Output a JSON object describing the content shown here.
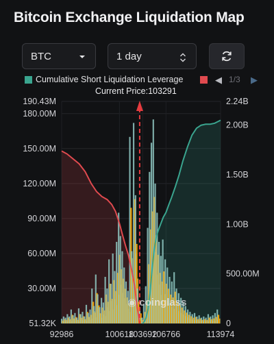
{
  "title": "Bitcoin Exchange Liquidation Map",
  "controls": {
    "coin": "BTC",
    "range": "1 day"
  },
  "icons": {
    "coin_dropdown": "chevron-down-icon",
    "range_stepper": "up-down-stepper-icon",
    "refresh": "refresh-icon",
    "prev": "triangle-left-icon",
    "next": "triangle-right-icon"
  },
  "colors": {
    "short_cumulative": "#3aa58f",
    "long_cumulative": "#e04a4f",
    "current_price_line": "#e53b3f",
    "bar_high": "#f5a300",
    "bar_mid": "#d8b238",
    "bar_teal": "#8fc8c2"
  },
  "legend": {
    "short_label": "Cumulative Short Liquidation Leverage",
    "page": "1/3"
  },
  "watermark": "coinglass",
  "chart_data": {
    "type": "bar",
    "current_price_label": "Current Price:103291",
    "current_price": 103291,
    "x_range": [
      92986,
      113974
    ],
    "x_ticks": [
      "92986",
      "100618",
      "103692",
      "106766",
      "113974"
    ],
    "x_tick_values": [
      92986,
      100618,
      103692,
      106766,
      113974
    ],
    "y_left_ticks": [
      "190.43M",
      "180.00M",
      "150.00M",
      "120.00M",
      "90.00M",
      "60.00M",
      "30.00M",
      "51.32K"
    ],
    "y_left_tick_values": [
      190430000,
      180000000,
      150000000,
      120000000,
      90000000,
      60000000,
      30000000,
      51320
    ],
    "y_left_range": [
      51320,
      190430000
    ],
    "y_right_ticks": [
      "2.24B",
      "2.00B",
      "1.50B",
      "1.00B",
      "500.00M",
      "0"
    ],
    "y_right_tick_values": [
      2240000000,
      2000000000,
      1500000000,
      1000000000,
      500000000,
      0
    ],
    "y_right_range": [
      0,
      2240000000
    ],
    "grid": true,
    "series": [
      {
        "name": "Cumulative Short Liquidation Leverage",
        "axis": "right",
        "x": [
          103692,
          103900,
          104150,
          104400,
          104650,
          104900,
          105200,
          105500,
          105800,
          106100,
          106400,
          106766,
          107100,
          107500,
          108000,
          108500,
          109000,
          109600,
          110200,
          110800,
          111400,
          112000,
          112600,
          113200,
          113974
        ],
        "values": [
          0,
          20000000,
          60000000,
          150000000,
          300000000,
          520000000,
          740000000,
          880000000,
          950000000,
          1010000000,
          1070000000,
          1120000000,
          1190000000,
          1270000000,
          1380000000,
          1500000000,
          1640000000,
          1780000000,
          1900000000,
          1970000000,
          2000000000,
          2010000000,
          2010000000,
          2020000000,
          2050000000
        ]
      },
      {
        "axis": "right",
        "x": [
          92986,
          93700,
          94500,
          95300,
          96100,
          96900,
          97600,
          98300,
          99000,
          99600,
          100100,
          100618,
          101000,
          101400,
          101800,
          102200,
          102600,
          102950,
          103291
        ],
        "values": [
          1740000000,
          1710000000,
          1660000000,
          1610000000,
          1530000000,
          1410000000,
          1330000000,
          1280000000,
          1250000000,
          1200000000,
          1130000000,
          1010000000,
          900000000,
          790000000,
          690000000,
          550000000,
          390000000,
          170000000,
          0
        ]
      }
    ],
    "bars": {
      "x": [
        93100,
        93350,
        93600,
        93850,
        94100,
        94350,
        94600,
        94850,
        95100,
        95350,
        95600,
        95850,
        96100,
        96350,
        96600,
        96850,
        97100,
        97350,
        97600,
        97850,
        98100,
        98350,
        98600,
        98850,
        99100,
        99350,
        99600,
        99850,
        100100,
        100350,
        100618,
        100850,
        101100,
        101350,
        101600,
        101850,
        102100,
        102350,
        102600,
        102850,
        103100,
        103400,
        103692,
        103950,
        104200,
        104450,
        104700,
        104950,
        105200,
        105450,
        105700,
        105950,
        106200,
        106450,
        106766,
        107050,
        107350,
        107650,
        107950,
        108250,
        108550,
        108850,
        109150,
        109450,
        109750,
        110050,
        110350,
        110650,
        110950,
        111250,
        111550,
        111850,
        112150,
        112450,
        112750,
        113050,
        113350,
        113650
      ],
      "values": [
        4000000,
        6000000,
        5000000,
        8000000,
        6000000,
        12000000,
        7000000,
        9000000,
        5000000,
        13000000,
        8000000,
        10000000,
        6000000,
        16000000,
        9000000,
        12000000,
        30000000,
        15000000,
        42000000,
        25000000,
        14000000,
        22000000,
        18000000,
        40000000,
        30000000,
        55000000,
        34000000,
        60000000,
        45000000,
        70000000,
        95000000,
        75000000,
        62000000,
        48000000,
        36000000,
        28000000,
        160000000,
        62000000,
        172000000,
        110000000,
        30000000,
        14000000,
        5000000,
        16000000,
        32000000,
        82000000,
        130000000,
        155000000,
        175000000,
        120000000,
        95000000,
        70000000,
        58000000,
        72000000,
        55000000,
        48000000,
        40000000,
        36000000,
        44000000,
        30000000,
        26000000,
        22000000,
        18000000,
        15000000,
        12000000,
        10000000,
        8000000,
        9000000,
        6000000,
        7000000,
        5000000,
        6000000,
        5000000,
        8000000,
        6000000,
        7000000,
        9000000,
        12000000
      ]
    }
  }
}
